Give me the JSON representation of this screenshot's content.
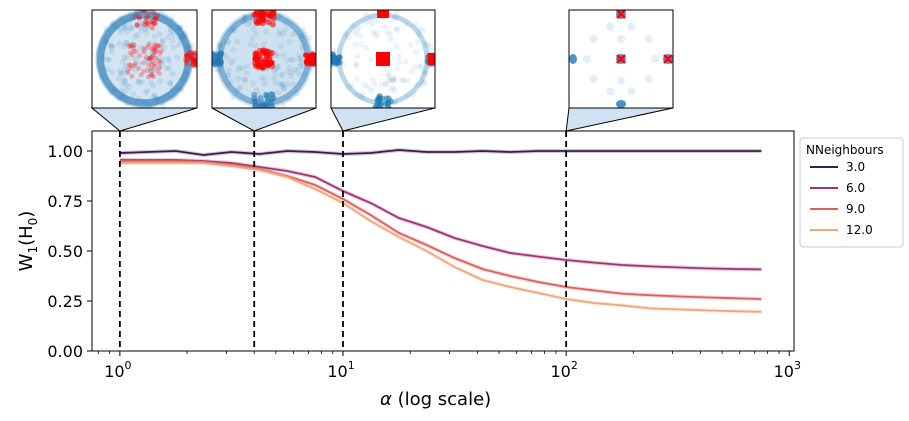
{
  "chart_data": {
    "type": "line",
    "xlabel_symbol": "α",
    "xlabel_rest": " (log scale)",
    "ylabel_base": "W",
    "ylabel_sub1": "1",
    "ylabel_mid": "(H",
    "ylabel_sub2": "0",
    "ylabel_end": ")",
    "xscale": "log",
    "xlim": [
      0.75,
      1050
    ],
    "ylim": [
      0,
      1.1
    ],
    "yticks": [
      {
        "value": 0.0,
        "label": "0.00"
      },
      {
        "value": 0.25,
        "label": "0.25"
      },
      {
        "value": 0.5,
        "label": "0.50"
      },
      {
        "value": 0.75,
        "label": "0.75"
      },
      {
        "value": 1.0,
        "label": "1.00"
      }
    ],
    "xticks": [
      {
        "value": 1,
        "base": "10",
        "exp": "0"
      },
      {
        "value": 10,
        "base": "10",
        "exp": "1"
      },
      {
        "value": 100,
        "base": "10",
        "exp": "2"
      },
      {
        "value": 1000,
        "base": "10",
        "exp": "3"
      }
    ],
    "vlines": [
      1,
      4,
      10,
      100
    ],
    "legend": {
      "title": "NNeighbours",
      "placement": "outside-right-top"
    },
    "x": [
      1,
      1.33,
      1.78,
      2.37,
      3.16,
      4.22,
      5.62,
      7.5,
      10,
      13.3,
      17.8,
      23.7,
      31.6,
      42.2,
      56.2,
      75,
      100,
      133,
      178,
      237,
      316,
      422,
      562,
      750
    ],
    "series": [
      {
        "name": "3.0",
        "color": "#3d1c55",
        "values": [
          0.99,
          0.995,
          1.0,
          0.98,
          0.995,
          0.985,
          1.0,
          0.995,
          0.985,
          0.99,
          1.005,
          0.995,
          0.995,
          1.0,
          0.995,
          1.0,
          1.0,
          1.0,
          1.0,
          1.0,
          1.0,
          1.0,
          1.0,
          1.0
        ]
      },
      {
        "name": "6.0",
        "color": "#a03670",
        "values": [
          0.955,
          0.955,
          0.955,
          0.95,
          0.94,
          0.92,
          0.9,
          0.87,
          0.8,
          0.74,
          0.665,
          0.62,
          0.565,
          0.525,
          0.49,
          0.472,
          0.455,
          0.442,
          0.43,
          0.423,
          0.418,
          0.413,
          0.41,
          0.408
        ]
      },
      {
        "name": "9.0",
        "color": "#df5f5f",
        "values": [
          0.95,
          0.95,
          0.95,
          0.945,
          0.93,
          0.91,
          0.875,
          0.83,
          0.76,
          0.68,
          0.59,
          0.53,
          0.465,
          0.41,
          0.375,
          0.345,
          0.32,
          0.303,
          0.287,
          0.279,
          0.273,
          0.268,
          0.264,
          0.26
        ]
      },
      {
        "name": "12.0",
        "color": "#eda77f",
        "values": [
          0.94,
          0.94,
          0.94,
          0.94,
          0.925,
          0.905,
          0.87,
          0.81,
          0.74,
          0.65,
          0.57,
          0.5,
          0.42,
          0.355,
          0.32,
          0.29,
          0.26,
          0.24,
          0.228,
          0.213,
          0.208,
          0.203,
          0.199,
          0.196
        ]
      }
    ],
    "insets": [
      {
        "alpha": 1,
        "style": "dense-ring-center"
      },
      {
        "alpha": 4,
        "style": "ring-center"
      },
      {
        "alpha": 10,
        "style": "sparse-ring-center"
      },
      {
        "alpha": 100,
        "style": "discrete-points"
      }
    ],
    "colors": {
      "inset_blue": "#1f77b4",
      "inset_red": "#ff0000",
      "connector_fill": "#cfe1f2",
      "vline": "#000000"
    }
  }
}
